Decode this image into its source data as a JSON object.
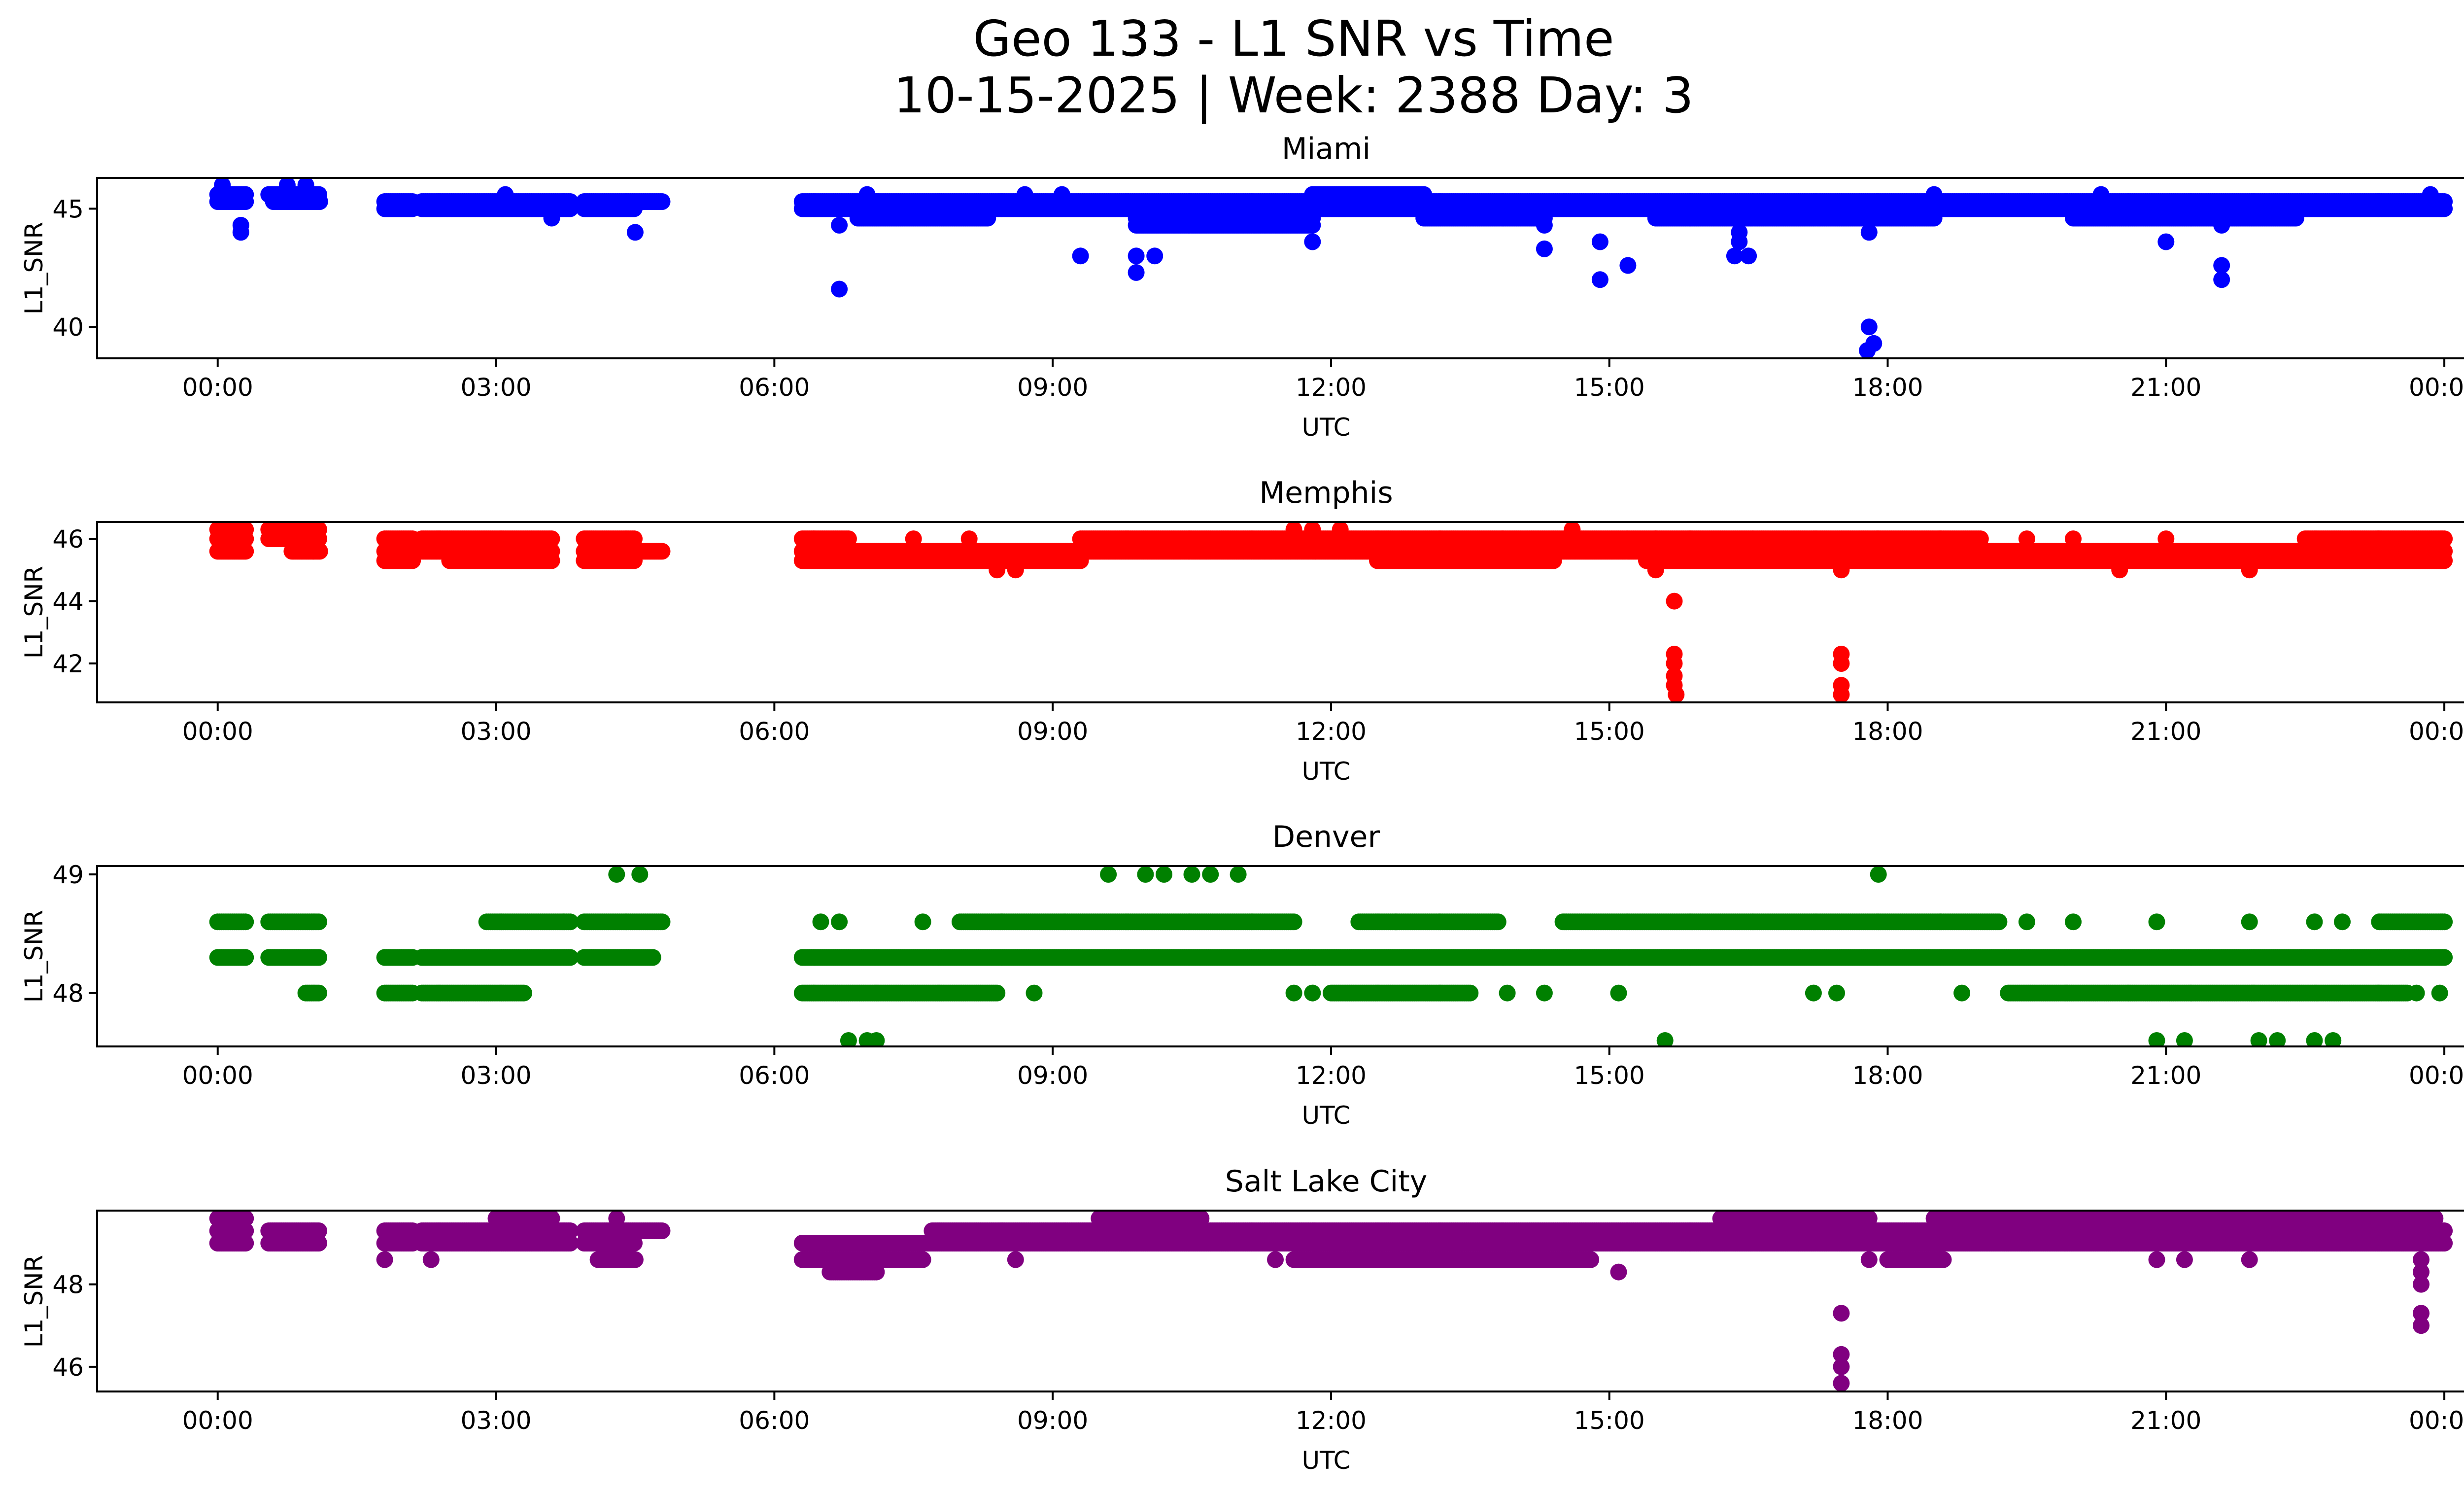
{
  "chart_data": {
    "type": "scatter",
    "title": "Geo 133 - L1 SNR vs Time",
    "subtitle": "10-15-2025 | Week: 2388 Day: 3",
    "x_unit": "hours UTC since 00:00",
    "xlim": [
      -1.3,
      25.2
    ],
    "x_ticks": [
      0,
      3,
      6,
      9,
      12,
      15,
      18,
      21,
      24
    ],
    "x_tick_labels": [
      "00:00",
      "03:00",
      "06:00",
      "09:00",
      "12:00",
      "15:00",
      "18:00",
      "21:00",
      "00:00"
    ],
    "xlabel": "UTC",
    "ylabel": "L1_SNR",
    "grid": false,
    "legend": "none",
    "sample_interval_hours": 0.02,
    "panels": [
      {
        "name": "Miami",
        "color": "#0000ff",
        "ylim": [
          38.67,
          46.3
        ],
        "y_ticks": [
          40,
          45
        ],
        "y_tick_labels": [
          "40",
          "45"
        ],
        "segments": [
          {
            "y": 45.6,
            "start": 0.0,
            "end": 0.3
          },
          {
            "y": 45.3,
            "start": 0.0,
            "end": 0.3
          },
          {
            "y": 45.6,
            "start": 0.55,
            "end": 1.1
          },
          {
            "y": 45.3,
            "start": 0.6,
            "end": 1.1
          },
          {
            "y": 45.3,
            "start": 1.8,
            "end": 2.1
          },
          {
            "y": 45.0,
            "start": 1.8,
            "end": 2.1
          },
          {
            "y": 45.3,
            "start": 2.2,
            "end": 3.8
          },
          {
            "y": 45.0,
            "start": 2.2,
            "end": 3.8
          },
          {
            "y": 45.3,
            "start": 3.95,
            "end": 4.8
          },
          {
            "y": 45.0,
            "start": 3.95,
            "end": 4.5
          },
          {
            "y": 45.3,
            "start": 6.3,
            "end": 24.0
          },
          {
            "y": 45.0,
            "start": 6.3,
            "end": 24.0
          },
          {
            "y": 44.6,
            "start": 6.9,
            "end": 8.3
          },
          {
            "y": 44.6,
            "start": 9.9,
            "end": 11.8
          },
          {
            "y": 44.3,
            "start": 9.9,
            "end": 11.8
          },
          {
            "y": 45.6,
            "start": 11.8,
            "end": 13.0
          },
          {
            "y": 44.6,
            "start": 13.0,
            "end": 14.3
          },
          {
            "y": 44.6,
            "start": 15.5,
            "end": 18.5
          },
          {
            "y": 44.6,
            "start": 20.0,
            "end": 22.4
          }
        ],
        "outliers": [
          {
            "x": 0.05,
            "y": 46.0
          },
          {
            "x": 0.25,
            "y": 44.3
          },
          {
            "x": 0.25,
            "y": 44.0
          },
          {
            "x": 0.75,
            "y": 46.0
          },
          {
            "x": 0.95,
            "y": 46.0
          },
          {
            "x": 3.1,
            "y": 45.6
          },
          {
            "x": 3.6,
            "y": 44.6
          },
          {
            "x": 4.5,
            "y": 44.0
          },
          {
            "x": 6.7,
            "y": 44.3
          },
          {
            "x": 6.7,
            "y": 41.6
          },
          {
            "x": 7.0,
            "y": 45.6
          },
          {
            "x": 8.7,
            "y": 45.6
          },
          {
            "x": 9.1,
            "y": 45.6
          },
          {
            "x": 9.3,
            "y": 43.0
          },
          {
            "x": 9.9,
            "y": 43.0
          },
          {
            "x": 9.9,
            "y": 42.3
          },
          {
            "x": 10.1,
            "y": 43.0
          },
          {
            "x": 11.8,
            "y": 43.6
          },
          {
            "x": 14.3,
            "y": 43.3
          },
          {
            "x": 14.3,
            "y": 44.3
          },
          {
            "x": 14.9,
            "y": 43.6
          },
          {
            "x": 14.9,
            "y": 42.0
          },
          {
            "x": 15.2,
            "y": 42.6
          },
          {
            "x": 16.4,
            "y": 43.6
          },
          {
            "x": 16.35,
            "y": 43.0
          },
          {
            "x": 16.5,
            "y": 43.0
          },
          {
            "x": 16.4,
            "y": 44.0
          },
          {
            "x": 17.8,
            "y": 40.0
          },
          {
            "x": 17.78,
            "y": 39.0
          },
          {
            "x": 17.85,
            "y": 39.3
          },
          {
            "x": 17.8,
            "y": 44.0
          },
          {
            "x": 18.5,
            "y": 45.6
          },
          {
            "x": 20.3,
            "y": 45.6
          },
          {
            "x": 21.0,
            "y": 43.6
          },
          {
            "x": 21.6,
            "y": 42.6
          },
          {
            "x": 21.6,
            "y": 42.0
          },
          {
            "x": 21.6,
            "y": 44.3
          },
          {
            "x": 23.85,
            "y": 45.6
          }
        ]
      },
      {
        "name": "Memphis",
        "color": "#ff0000",
        "ylim": [
          40.75,
          46.54
        ],
        "y_ticks": [
          42,
          44,
          46
        ],
        "y_tick_labels": [
          "42",
          "44",
          "46"
        ],
        "segments": [
          {
            "y": 46.3,
            "start": 0.0,
            "end": 0.3
          },
          {
            "y": 46.0,
            "start": 0.0,
            "end": 0.3
          },
          {
            "y": 45.6,
            "start": 0.0,
            "end": 0.3
          },
          {
            "y": 46.3,
            "start": 0.55,
            "end": 1.1
          },
          {
            "y": 46.0,
            "start": 0.55,
            "end": 1.1
          },
          {
            "y": 45.6,
            "start": 0.8,
            "end": 1.1
          },
          {
            "y": 46.0,
            "start": 1.8,
            "end": 2.1
          },
          {
            "y": 45.6,
            "start": 1.8,
            "end": 2.1
          },
          {
            "y": 45.3,
            "start": 1.8,
            "end": 2.1
          },
          {
            "y": 46.0,
            "start": 2.2,
            "end": 3.6
          },
          {
            "y": 45.6,
            "start": 2.2,
            "end": 3.6
          },
          {
            "y": 45.3,
            "start": 2.5,
            "end": 3.6
          },
          {
            "y": 46.0,
            "start": 3.95,
            "end": 4.5
          },
          {
            "y": 45.6,
            "start": 3.95,
            "end": 4.8
          },
          {
            "y": 45.3,
            "start": 3.95,
            "end": 4.5
          },
          {
            "y": 46.0,
            "start": 6.3,
            "end": 6.8
          },
          {
            "y": 45.6,
            "start": 6.3,
            "end": 24.0
          },
          {
            "y": 45.3,
            "start": 6.3,
            "end": 9.3
          },
          {
            "y": 46.0,
            "start": 9.3,
            "end": 15.5
          },
          {
            "y": 45.3,
            "start": 12.5,
            "end": 14.4
          },
          {
            "y": 45.3,
            "start": 15.4,
            "end": 24.0
          },
          {
            "y": 46.0,
            "start": 15.5,
            "end": 19.0
          },
          {
            "y": 46.0,
            "start": 22.5,
            "end": 24.0
          }
        ],
        "outliers": [
          {
            "x": 7.5,
            "y": 46.0
          },
          {
            "x": 8.1,
            "y": 46.0
          },
          {
            "x": 8.4,
            "y": 45.0
          },
          {
            "x": 8.6,
            "y": 45.0
          },
          {
            "x": 11.6,
            "y": 46.3
          },
          {
            "x": 11.8,
            "y": 46.3
          },
          {
            "x": 12.1,
            "y": 46.3
          },
          {
            "x": 14.6,
            "y": 46.3
          },
          {
            "x": 15.5,
            "y": 45.0
          },
          {
            "x": 15.7,
            "y": 44.0
          },
          {
            "x": 15.7,
            "y": 42.3
          },
          {
            "x": 15.7,
            "y": 42.0
          },
          {
            "x": 15.7,
            "y": 41.6
          },
          {
            "x": 15.7,
            "y": 41.3
          },
          {
            "x": 15.72,
            "y": 41.0
          },
          {
            "x": 17.5,
            "y": 42.3
          },
          {
            "x": 17.5,
            "y": 42.0
          },
          {
            "x": 17.5,
            "y": 41.3
          },
          {
            "x": 17.5,
            "y": 41.0
          },
          {
            "x": 17.5,
            "y": 45.0
          },
          {
            "x": 19.5,
            "y": 46.0
          },
          {
            "x": 20.0,
            "y": 46.0
          },
          {
            "x": 20.5,
            "y": 45.0
          },
          {
            "x": 21.0,
            "y": 46.0
          },
          {
            "x": 21.9,
            "y": 45.0
          },
          {
            "x": 23.3,
            "y": 45.3
          }
        ]
      },
      {
        "name": "Denver",
        "color": "#008000",
        "ylim": [
          47.55,
          49.07
        ],
        "y_ticks": [
          48,
          49
        ],
        "y_tick_labels": [
          "48",
          "49"
        ],
        "segments": [
          {
            "y": 48.6,
            "start": 0.0,
            "end": 0.3
          },
          {
            "y": 48.3,
            "start": 0.0,
            "end": 0.3
          },
          {
            "y": 48.6,
            "start": 0.55,
            "end": 1.1
          },
          {
            "y": 48.3,
            "start": 0.55,
            "end": 1.1
          },
          {
            "y": 48.0,
            "start": 0.95,
            "end": 1.1
          },
          {
            "y": 48.3,
            "start": 1.8,
            "end": 2.1
          },
          {
            "y": 48.0,
            "start": 1.8,
            "end": 2.1
          },
          {
            "y": 48.3,
            "start": 2.2,
            "end": 3.8
          },
          {
            "y": 48.0,
            "start": 2.2,
            "end": 3.3
          },
          {
            "y": 48.6,
            "start": 2.9,
            "end": 3.8
          },
          {
            "y": 48.6,
            "start": 3.95,
            "end": 4.8
          },
          {
            "y": 48.3,
            "start": 3.95,
            "end": 4.7
          },
          {
            "y": 48.3,
            "start": 6.3,
            "end": 24.0
          },
          {
            "y": 48.0,
            "start": 6.3,
            "end": 8.4
          },
          {
            "y": 48.6,
            "start": 8.0,
            "end": 11.6
          },
          {
            "y": 48.6,
            "start": 12.3,
            "end": 13.8
          },
          {
            "y": 48.6,
            "start": 14.5,
            "end": 19.2
          },
          {
            "y": 48.0,
            "start": 12.0,
            "end": 13.5
          },
          {
            "y": 48.0,
            "start": 19.3,
            "end": 23.6
          },
          {
            "y": 48.6,
            "start": 23.3,
            "end": 24.0
          }
        ],
        "outliers": [
          {
            "x": 6.5,
            "y": 48.6
          },
          {
            "x": 6.7,
            "y": 48.6
          },
          {
            "x": 6.8,
            "y": 47.6
          },
          {
            "x": 7.0,
            "y": 47.6
          },
          {
            "x": 7.1,
            "y": 47.6
          },
          {
            "x": 7.6,
            "y": 48.6
          },
          {
            "x": 8.8,
            "y": 48.0
          },
          {
            "x": 9.6,
            "y": 49.0
          },
          {
            "x": 10.0,
            "y": 49.0
          },
          {
            "x": 10.2,
            "y": 49.0
          },
          {
            "x": 10.5,
            "y": 49.0
          },
          {
            "x": 10.7,
            "y": 49.0
          },
          {
            "x": 11.0,
            "y": 49.0
          },
          {
            "x": 4.3,
            "y": 49.0
          },
          {
            "x": 4.55,
            "y": 49.0
          },
          {
            "x": 11.6,
            "y": 48.0
          },
          {
            "x": 11.8,
            "y": 48.0
          },
          {
            "x": 12.7,
            "y": 48.6
          },
          {
            "x": 13.9,
            "y": 48.0
          },
          {
            "x": 14.3,
            "y": 48.0
          },
          {
            "x": 15.1,
            "y": 48.0
          },
          {
            "x": 15.6,
            "y": 47.6
          },
          {
            "x": 17.2,
            "y": 48.0
          },
          {
            "x": 17.45,
            "y": 48.0
          },
          {
            "x": 17.9,
            "y": 49.0
          },
          {
            "x": 18.8,
            "y": 48.0
          },
          {
            "x": 19.5,
            "y": 48.6
          },
          {
            "x": 20.0,
            "y": 48.6
          },
          {
            "x": 20.9,
            "y": 48.6
          },
          {
            "x": 20.9,
            "y": 47.6
          },
          {
            "x": 21.2,
            "y": 47.6
          },
          {
            "x": 21.9,
            "y": 48.6
          },
          {
            "x": 22.0,
            "y": 47.6
          },
          {
            "x": 22.2,
            "y": 47.6
          },
          {
            "x": 22.6,
            "y": 47.6
          },
          {
            "x": 22.8,
            "y": 47.6
          },
          {
            "x": 22.6,
            "y": 48.6
          },
          {
            "x": 22.9,
            "y": 48.6
          },
          {
            "x": 23.7,
            "y": 48.0
          },
          {
            "x": 23.95,
            "y": 48.0
          }
        ]
      },
      {
        "name": "Salt Lake City",
        "color": "#800080",
        "ylim": [
          45.4,
          49.79
        ],
        "y_ticks": [
          46,
          48
        ],
        "y_tick_labels": [
          "46",
          "48"
        ],
        "segments": [
          {
            "y": 49.6,
            "start": 0.0,
            "end": 0.3
          },
          {
            "y": 49.3,
            "start": 0.0,
            "end": 0.3
          },
          {
            "y": 49.0,
            "start": 0.0,
            "end": 0.3
          },
          {
            "y": 49.3,
            "start": 0.55,
            "end": 1.1
          },
          {
            "y": 49.0,
            "start": 0.55,
            "end": 1.1
          },
          {
            "y": 49.3,
            "start": 1.8,
            "end": 2.1
          },
          {
            "y": 49.0,
            "start": 1.8,
            "end": 2.1
          },
          {
            "y": 49.3,
            "start": 2.2,
            "end": 3.8
          },
          {
            "y": 49.0,
            "start": 2.2,
            "end": 3.8
          },
          {
            "y": 49.6,
            "start": 3.0,
            "end": 3.6
          },
          {
            "y": 49.3,
            "start": 3.95,
            "end": 4.8
          },
          {
            "y": 49.0,
            "start": 3.95,
            "end": 4.5
          },
          {
            "y": 48.6,
            "start": 4.1,
            "end": 4.5
          },
          {
            "y": 49.0,
            "start": 6.3,
            "end": 24.0
          },
          {
            "y": 48.6,
            "start": 6.3,
            "end": 7.6
          },
          {
            "y": 48.3,
            "start": 6.6,
            "end": 7.1
          },
          {
            "y": 49.3,
            "start": 7.7,
            "end": 24.0
          },
          {
            "y": 49.6,
            "start": 9.5,
            "end": 10.6
          },
          {
            "y": 48.6,
            "start": 11.6,
            "end": 14.8
          },
          {
            "y": 49.6,
            "start": 16.2,
            "end": 17.8
          },
          {
            "y": 49.6,
            "start": 18.5,
            "end": 23.9
          },
          {
            "y": 48.6,
            "start": 18.0,
            "end": 18.6
          }
        ],
        "outliers": [
          {
            "x": 1.8,
            "y": 48.6
          },
          {
            "x": 2.3,
            "y": 48.6
          },
          {
            "x": 4.3,
            "y": 49.6
          },
          {
            "x": 8.6,
            "y": 48.6
          },
          {
            "x": 11.4,
            "y": 48.6
          },
          {
            "x": 15.1,
            "y": 48.3
          },
          {
            "x": 17.5,
            "y": 47.3
          },
          {
            "x": 17.5,
            "y": 46.3
          },
          {
            "x": 17.5,
            "y": 46.0
          },
          {
            "x": 17.5,
            "y": 45.6
          },
          {
            "x": 17.5,
            "y": 49.6
          },
          {
            "x": 17.8,
            "y": 48.6
          },
          {
            "x": 20.9,
            "y": 48.6
          },
          {
            "x": 21.2,
            "y": 48.6
          },
          {
            "x": 21.9,
            "y": 48.6
          },
          {
            "x": 23.75,
            "y": 48.6
          },
          {
            "x": 23.75,
            "y": 48.3
          },
          {
            "x": 23.75,
            "y": 48.0
          },
          {
            "x": 23.75,
            "y": 47.3
          },
          {
            "x": 23.75,
            "y": 47.0
          },
          {
            "x": 23.8,
            "y": 49.6
          }
        ]
      }
    ]
  }
}
